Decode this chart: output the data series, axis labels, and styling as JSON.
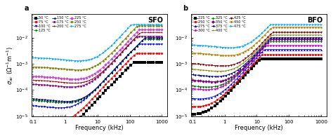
{
  "panel_a": {
    "title": "SFO",
    "label": "a",
    "temps": [
      "50 °C",
      "75 °C",
      "100 °C",
      "125 °C",
      "150 °C",
      "175 °C",
      "200 °C",
      "225 °C",
      "250 °C",
      "275 °C"
    ],
    "colors": [
      "#000000",
      "#ff0000",
      "#0000ff",
      "#008000",
      "#00008b",
      "#800080",
      "#8b0000",
      "#cc44cc",
      "#808000",
      "#00aaff"
    ],
    "markers": [
      "s",
      "o",
      "v",
      "P",
      "<",
      "p",
      "*",
      "D",
      "H",
      ">"
    ],
    "sigma_dc": [
      -5.85,
      -5.1,
      -4.55,
      -4.35,
      -4.3,
      -3.75,
      -3.6,
      -3.45,
      -3.1,
      -2.75
    ],
    "f_onset": [
      -0.3,
      0.1,
      0.35,
      0.5,
      0.55,
      0.7,
      0.8,
      0.8,
      0.9,
      0.95
    ],
    "sigma_max": [
      -2.95,
      -2.6,
      -2.25,
      -2.05,
      -2.0,
      -1.95,
      -1.8,
      -1.7,
      -1.55,
      -1.5
    ],
    "ylim_min": 1e-05,
    "ylim_max": 0.08
  },
  "panel_b": {
    "title": "BFO",
    "label": "b",
    "temps": [
      "225 °C",
      "250 °C",
      "275 °C",
      "300 °C",
      "325 °C",
      "350 °C",
      "375 °C",
      "400 °C",
      "425 °C",
      "450 °C",
      "475 °C"
    ],
    "colors": [
      "#000000",
      "#ff0000",
      "#0000ff",
      "#cc00cc",
      "#008000",
      "#800080",
      "#00008b",
      "#808000",
      "#8b0000",
      "#b8860b",
      "#00aaff"
    ],
    "markers": [
      "s",
      "o",
      "^",
      "p",
      "P",
      "D",
      "<",
      "*",
      "v",
      "H",
      ">"
    ],
    "sigma_dc": [
      -4.8,
      -4.5,
      -4.2,
      -3.85,
      -3.75,
      -3.55,
      -3.35,
      -3.15,
      -2.95,
      -2.55,
      -2.25
    ],
    "f_onset": [
      -0.55,
      -0.4,
      -0.25,
      -0.05,
      0.0,
      0.15,
      0.25,
      0.35,
      0.45,
      0.6,
      0.7
    ],
    "sigma_max": [
      -2.8,
      -2.65,
      -2.45,
      -2.3,
      -2.15,
      -2.05,
      -2.0,
      -1.9,
      -1.8,
      -1.6,
      -1.5
    ],
    "ylim_min": 1e-05,
    "ylim_max": 0.08
  },
  "xlabel": "Frequency (kHz)",
  "ylabel_left": "$\\sigma_{ac}$ ($\\Omega^{-1}$m$^{-1}$)",
  "xlim": [
    0.09,
    1500
  ],
  "x_freq_dense": [
    0.1,
    0.12,
    0.15,
    0.18,
    0.22,
    0.27,
    0.33,
    0.4,
    0.5,
    0.6,
    0.75,
    0.9,
    1.1,
    1.35,
    1.6,
    2.0,
    2.5,
    3.0,
    3.7,
    4.5,
    5.5,
    6.8,
    8.2,
    10.0,
    12.0,
    15.0,
    18.0,
    22.0,
    27.0,
    33.0,
    40.0,
    50.0,
    60.0,
    75.0,
    90.0,
    110.0,
    135.0,
    165.0,
    200.0,
    245.0,
    300.0,
    370.0,
    450.0,
    550.0,
    680.0,
    820.0,
    1000.0
  ]
}
